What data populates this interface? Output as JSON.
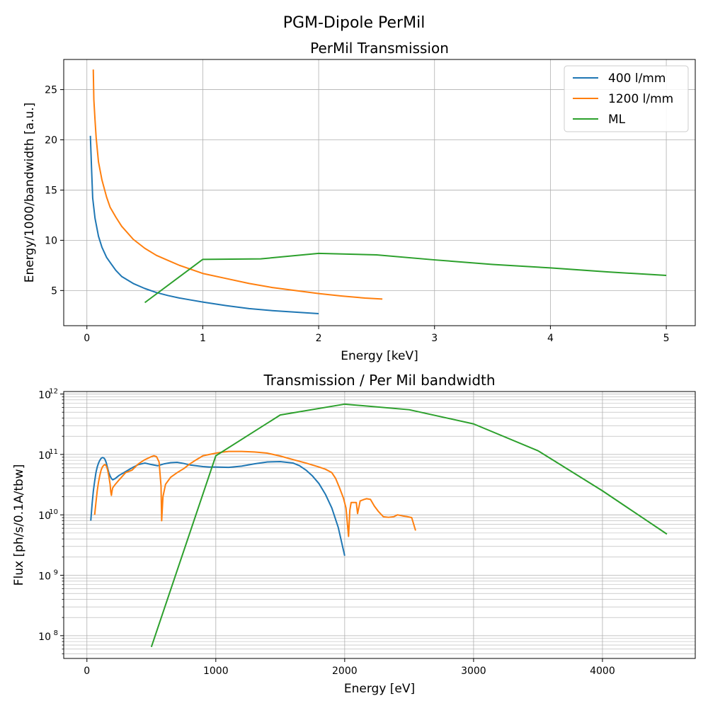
{
  "figure": {
    "suptitle": "PGM-Dipole PerMil"
  },
  "chart_data": [
    {
      "type": "line",
      "title": "PerMil Transmission",
      "xlabel": "Energy [keV]",
      "ylabel": "Energy/1000/bandwidth [a.u.]",
      "xlim": [
        -0.2,
        5.25
      ],
      "ylim": [
        1.5,
        28
      ],
      "xticks": [
        0,
        1,
        2,
        3,
        4,
        5
      ],
      "xtick_labels": [
        "0",
        "1",
        "2",
        "3",
        "4",
        "5"
      ],
      "yticks": [
        5,
        10,
        15,
        20,
        25
      ],
      "ytick_labels": [
        "5",
        "10",
        "15",
        "20",
        "25"
      ],
      "grid": true,
      "legend": "top-right",
      "series": [
        {
          "name": "400 l/mm",
          "color": "#1f77b4",
          "x": [
            0.03,
            0.04,
            0.05,
            0.07,
            0.1,
            0.13,
            0.17,
            0.2,
            0.25,
            0.3,
            0.4,
            0.5,
            0.6,
            0.7,
            0.8,
            0.9,
            1.0,
            1.2,
            1.4,
            1.6,
            1.8,
            2.0
          ],
          "y": [
            20.4,
            17.2,
            14.2,
            12.2,
            10.4,
            9.3,
            8.3,
            7.8,
            7.0,
            6.4,
            5.7,
            5.2,
            4.8,
            4.5,
            4.25,
            4.05,
            3.85,
            3.5,
            3.2,
            3.0,
            2.85,
            2.7
          ]
        },
        {
          "name": "1200 l/mm",
          "color": "#ff7f0e",
          "x": [
            0.055,
            0.06,
            0.07,
            0.08,
            0.1,
            0.13,
            0.17,
            0.2,
            0.25,
            0.3,
            0.4,
            0.5,
            0.6,
            0.7,
            0.8,
            1.0,
            1.2,
            1.4,
            1.6,
            1.8,
            2.0,
            2.2,
            2.4,
            2.55
          ],
          "y": [
            27.0,
            24.0,
            22.0,
            20.2,
            17.8,
            16.0,
            14.3,
            13.3,
            12.3,
            11.4,
            10.1,
            9.2,
            8.5,
            8.0,
            7.5,
            6.7,
            6.2,
            5.7,
            5.3,
            5.0,
            4.7,
            4.45,
            4.25,
            4.15
          ]
        },
        {
          "name": "ML",
          "color": "#2ca02c",
          "x": [
            0.5,
            1.0,
            1.5,
            2.0,
            2.5,
            3.0,
            3.5,
            4.0,
            4.5,
            5.0
          ],
          "y": [
            3.8,
            8.1,
            8.15,
            8.7,
            8.55,
            8.05,
            7.6,
            7.25,
            6.85,
            6.5
          ]
        }
      ]
    },
    {
      "type": "line",
      "title": "Transmission / Per Mil bandwidth",
      "xlabel": "Energy [eV]",
      "ylabel": "Flux [ph/s/0.1A/tbw]",
      "yscale": "log",
      "xlim": [
        -180,
        4720
      ],
      "ylim": [
        42000000.0,
        1100000000000.0
      ],
      "xticks": [
        0,
        1000,
        2000,
        3000,
        4000
      ],
      "xtick_labels": [
        "0",
        "1000",
        "2000",
        "3000",
        "4000"
      ],
      "ytick_labels": [
        {
          "base": "10",
          "exp": "8",
          "value": 100000000.0
        },
        {
          "base": "10",
          "exp": "9",
          "value": 1000000000.0
        },
        {
          "base": "10",
          "exp": "10",
          "value": 10000000000.0
        },
        {
          "base": "10",
          "exp": "11",
          "value": 100000000000.0
        },
        {
          "base": "10",
          "exp": "12",
          "value": 1000000000000.0
        }
      ],
      "grid": true,
      "series": [
        {
          "color": "#1f77b4",
          "x": [
            30,
            40,
            50,
            60,
            70,
            80,
            90,
            100,
            110,
            120,
            130,
            140,
            150,
            160,
            170,
            180,
            190,
            200,
            220,
            250,
            300,
            350,
            400,
            450,
            500,
            550,
            600,
            650,
            700,
            750,
            800,
            850,
            900,
            950,
            1000,
            1100,
            1200,
            1300,
            1400,
            1500,
            1600,
            1650,
            1700,
            1750,
            1800,
            1850,
            1900,
            1950,
            2000
          ],
          "y": [
            8000000000.0,
            15000000000.0,
            25000000000.0,
            36000000000.0,
            50000000000.0,
            62000000000.0,
            72000000000.0,
            80000000000.0,
            86000000000.0,
            89000000000.0,
            88000000000.0,
            83000000000.0,
            73000000000.0,
            60000000000.0,
            50000000000.0,
            44000000000.0,
            40000000000.0,
            38000000000.0,
            40000000000.0,
            45000000000.0,
            52000000000.0,
            60000000000.0,
            68000000000.0,
            72000000000.0,
            68000000000.0,
            65000000000.0,
            70000000000.0,
            73000000000.0,
            74000000000.0,
            71000000000.0,
            67000000000.0,
            65000000000.0,
            63000000000.0,
            62000000000.0,
            62000000000.0,
            61000000000.0,
            64000000000.0,
            70000000000.0,
            75000000000.0,
            76000000000.0,
            72000000000.0,
            65000000000.0,
            55000000000.0,
            44000000000.0,
            33000000000.0,
            22000000000.0,
            13000000000.0,
            6200000000.0,
            2100000000.0
          ]
        },
        {
          "color": "#ff7f0e",
          "x": [
            60,
            70,
            80,
            90,
            100,
            110,
            120,
            130,
            140,
            150,
            160,
            170,
            180,
            185,
            190,
            195,
            200,
            220,
            250,
            300,
            350,
            400,
            450,
            500,
            520,
            540,
            560,
            575,
            580,
            590,
            610,
            650,
            700,
            750,
            800,
            850,
            900,
            950,
            1000,
            1050,
            1100,
            1200,
            1300,
            1400,
            1500,
            1600,
            1700,
            1800,
            1850,
            1900,
            1930,
            1960,
            1990,
            2010,
            2030,
            2040,
            2050,
            2070,
            2090,
            2100,
            2120,
            2150,
            2170,
            2200,
            2230,
            2260,
            2300,
            2340,
            2380,
            2410,
            2450,
            2480,
            2520,
            2550
          ],
          "y": [
            10000000000.0,
            16000000000.0,
            25000000000.0,
            35000000000.0,
            45000000000.0,
            55000000000.0,
            62000000000.0,
            66000000000.0,
            68000000000.0,
            65000000000.0,
            56000000000.0,
            44000000000.0,
            32000000000.0,
            24000000000.0,
            21000000000.0,
            25000000000.0,
            28000000000.0,
            32000000000.0,
            38000000000.0,
            50000000000.0,
            55000000000.0,
            70000000000.0,
            82000000000.0,
            92000000000.0,
            95000000000.0,
            92000000000.0,
            75000000000.0,
            30000000000.0,
            8000000000.0,
            20000000000.0,
            32000000000.0,
            42000000000.0,
            50000000000.0,
            58000000000.0,
            70000000000.0,
            82000000000.0,
            95000000000.0,
            100000000000.0,
            105000000000.0,
            109000000000.0,
            112000000000.0,
            112000000000.0,
            110000000000.0,
            105000000000.0,
            94000000000.0,
            82000000000.0,
            72000000000.0,
            62000000000.0,
            57000000000.0,
            50000000000.0,
            40000000000.0,
            28000000000.0,
            19000000000.0,
            13000000000.0,
            4400000000.0,
            12000000000.0,
            16000000000.0,
            16000000000.0,
            16000000000.0,
            10500000000.0,
            17000000000.0,
            18000000000.0,
            18500000000.0,
            18000000000.0,
            14000000000.0,
            11500000000.0,
            9300000000.0,
            9100000000.0,
            9300000000.0,
            10000000000.0,
            9600000000.0,
            9400000000.0,
            9000000000.0,
            5500000000.0
          ]
        },
        {
          "color": "#2ca02c",
          "x": [
            500,
            1000,
            1500,
            2000,
            2500,
            3000,
            3500,
            4000,
            4500
          ],
          "y": [
            65000000.0,
            95000000000.0,
            450000000000.0,
            680000000000.0,
            550000000000.0,
            320000000000.0,
            115000000000.0,
            25000000000.0,
            4800000000.0
          ]
        }
      ]
    }
  ]
}
